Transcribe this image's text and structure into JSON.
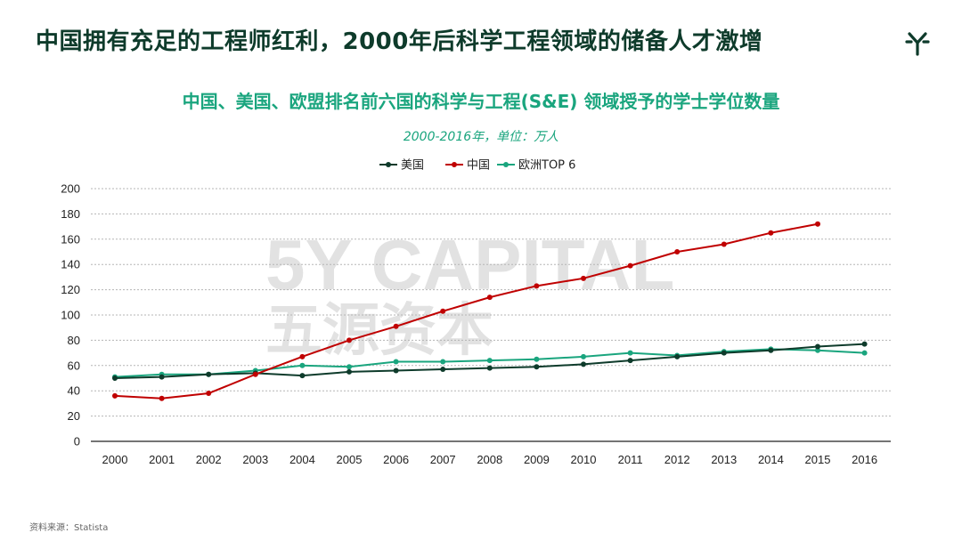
{
  "header": {
    "title": "中国拥有充足的工程师红利，2000年后科学工程领域的储备人才激增"
  },
  "logo": {
    "icon": "5y-capital-logo-icon",
    "color": "#0e3b2b"
  },
  "watermark": {
    "line1": "5Y CAPITAL",
    "line2": "五源资本"
  },
  "chart_data": {
    "type": "line",
    "title": "中国、美国、欧盟排名前六国的科学与工程(S&E) 领域授予的学士学位数量",
    "subtitle": "2000-2016年，单位：万人",
    "xlabel": "",
    "ylabel": "",
    "ylim": [
      0,
      200
    ],
    "yticks": [
      "0",
      "20",
      "40",
      "60",
      "80",
      "100",
      "120",
      "140",
      "160",
      "180",
      "200"
    ],
    "ytick_values": [
      0,
      20,
      40,
      60,
      80,
      100,
      120,
      140,
      160,
      180,
      200
    ],
    "categories": [
      "2000",
      "2001",
      "2002",
      "2003",
      "2004",
      "2005",
      "2006",
      "2007",
      "2008",
      "2009",
      "2010",
      "2011",
      "2012",
      "2013",
      "2014",
      "2015",
      "2016"
    ],
    "grid": true,
    "legend_position": "top",
    "series": [
      {
        "name": "美国",
        "color": "#0e3b2b",
        "values": [
          50,
          51,
          53,
          54,
          52,
          55,
          56,
          57,
          58,
          59,
          61,
          64,
          67,
          70,
          72,
          75,
          77
        ]
      },
      {
        "name": "中国",
        "color": "#c00000",
        "values": [
          36,
          34,
          38,
          53,
          67,
          80,
          91,
          103,
          114,
          123,
          129,
          139,
          150,
          156,
          165,
          172,
          null
        ]
      },
      {
        "name": "欧洲TOP 6",
        "color": "#1aa57e",
        "values": [
          51,
          53,
          53,
          56,
          60,
          59,
          63,
          63,
          64,
          65,
          67,
          70,
          68,
          71,
          73,
          72,
          70
        ]
      }
    ]
  },
  "source": {
    "text": "资料来源：Statista"
  }
}
